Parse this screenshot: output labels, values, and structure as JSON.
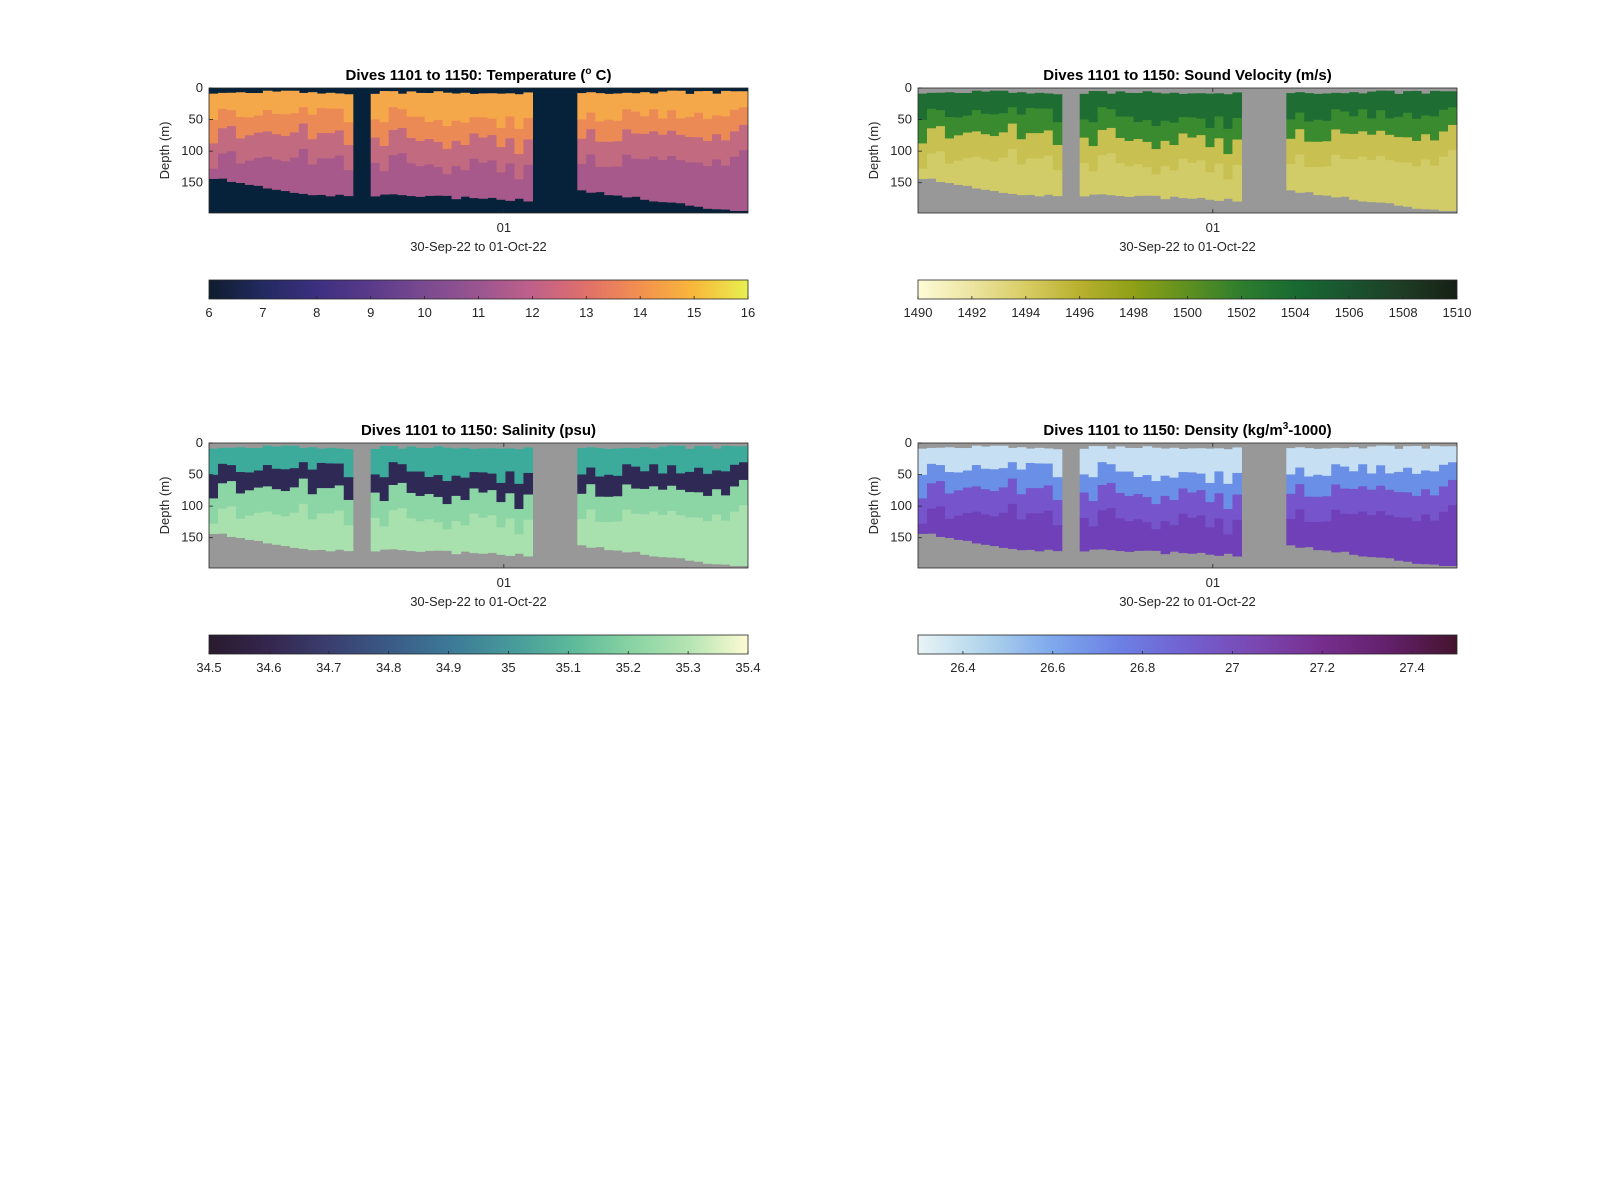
{
  "figure": {
    "panels": [
      {
        "key": "temperature",
        "title_main": "Dives 1101 to 1150: Temperature (",
        "title_sup": "o",
        "title_tail": " C)",
        "ylabel": "Depth (m)",
        "yticks": [
          "0",
          "50",
          "100",
          "150"
        ],
        "xtick": "01",
        "xlabel": "30-Sep-22 to 01-Oct-22",
        "colorbar_ticks": [
          "6",
          "7",
          "8",
          "9",
          "10",
          "11",
          "12",
          "13",
          "14",
          "15",
          "16"
        ],
        "colormap": [
          "#0f1c2e",
          "#232a60",
          "#3c2f80",
          "#5a3a8a",
          "#7a4a90",
          "#9a5590",
          "#c0608a",
          "#e0706a",
          "#f39050",
          "#f8b83a",
          "#e8f050"
        ],
        "fill_color": "#06223a",
        "layer_colors": [
          "#f5a84a",
          "#ec8a55",
          "#c26a80",
          "#a6598a"
        ]
      },
      {
        "key": "sound_velocity",
        "title_main": "Dives 1101 to 1150: Sound Velocity (m/s)",
        "title_sup": "",
        "title_tail": "",
        "ylabel": "Depth (m)",
        "yticks": [
          "0",
          "50",
          "100",
          "150"
        ],
        "xtick": "01",
        "xlabel": "30-Sep-22 to 01-Oct-22",
        "colorbar_ticks": [
          "1490",
          "1492",
          "1494",
          "1496",
          "1498",
          "1500",
          "1502",
          "1504",
          "1506",
          "1508",
          "1510"
        ],
        "colormap": [
          "#fdfbd8",
          "#ece4a0",
          "#d8cc64",
          "#b8b02e",
          "#8ea016",
          "#5e9020",
          "#2e7e2e",
          "#186a32",
          "#1a5430",
          "#1e3c24",
          "#161f14"
        ],
        "fill_color": "#989898",
        "layer_colors": [
          "#1e6e34",
          "#3a8a30",
          "#c8c050",
          "#d2cc68"
        ]
      },
      {
        "key": "salinity",
        "title_main": "Dives 1101 to 1150: Salinity (psu)",
        "title_sup": "",
        "title_tail": "",
        "ylabel": "Depth (m)",
        "yticks": [
          "0",
          "50",
          "100",
          "150"
        ],
        "xtick": "01",
        "xlabel": "30-Sep-22 to 01-Oct-22",
        "colorbar_ticks": [
          "34.5",
          "34.6",
          "34.7",
          "34.8",
          "34.9",
          "35",
          "35.1",
          "35.2",
          "35.3",
          "35.4"
        ],
        "colormap": [
          "#2a1a2e",
          "#34264e",
          "#3a3e6e",
          "#3a5a86",
          "#3c7896",
          "#46989a",
          "#5ab89a",
          "#86d2a2",
          "#b4e4b2",
          "#fdfbd3"
        ],
        "fill_color": "#989898",
        "layer_colors": [
          "#3cab9c",
          "#2f2a55",
          "#8cd6a6",
          "#a8e0ae"
        ]
      },
      {
        "key": "density",
        "title_main": "Dives 1101 to 1150: Density (kg/m",
        "title_sup": "3",
        "title_tail": "-1000)",
        "ylabel": "Depth (m)",
        "yticks": [
          "0",
          "50",
          "100",
          "150"
        ],
        "xtick": "01",
        "xlabel": "30-Sep-22 to 01-Oct-22",
        "colorbar_ticks": [
          "26.4",
          "26.6",
          "26.8",
          "27",
          "27.2",
          "27.4"
        ],
        "colormap": [
          "#e8f4f6",
          "#b0d4ec",
          "#7ea8ec",
          "#6c80e4",
          "#7260d0",
          "#7a48b2",
          "#762e8e",
          "#62206a",
          "#44142e"
        ],
        "colorbar_range": [
          26.3,
          27.5
        ],
        "fill_color": "#989898",
        "layer_colors": [
          "#c6dff2",
          "#6a8fe6",
          "#7655cc",
          "#7040b8"
        ]
      }
    ]
  }
}
